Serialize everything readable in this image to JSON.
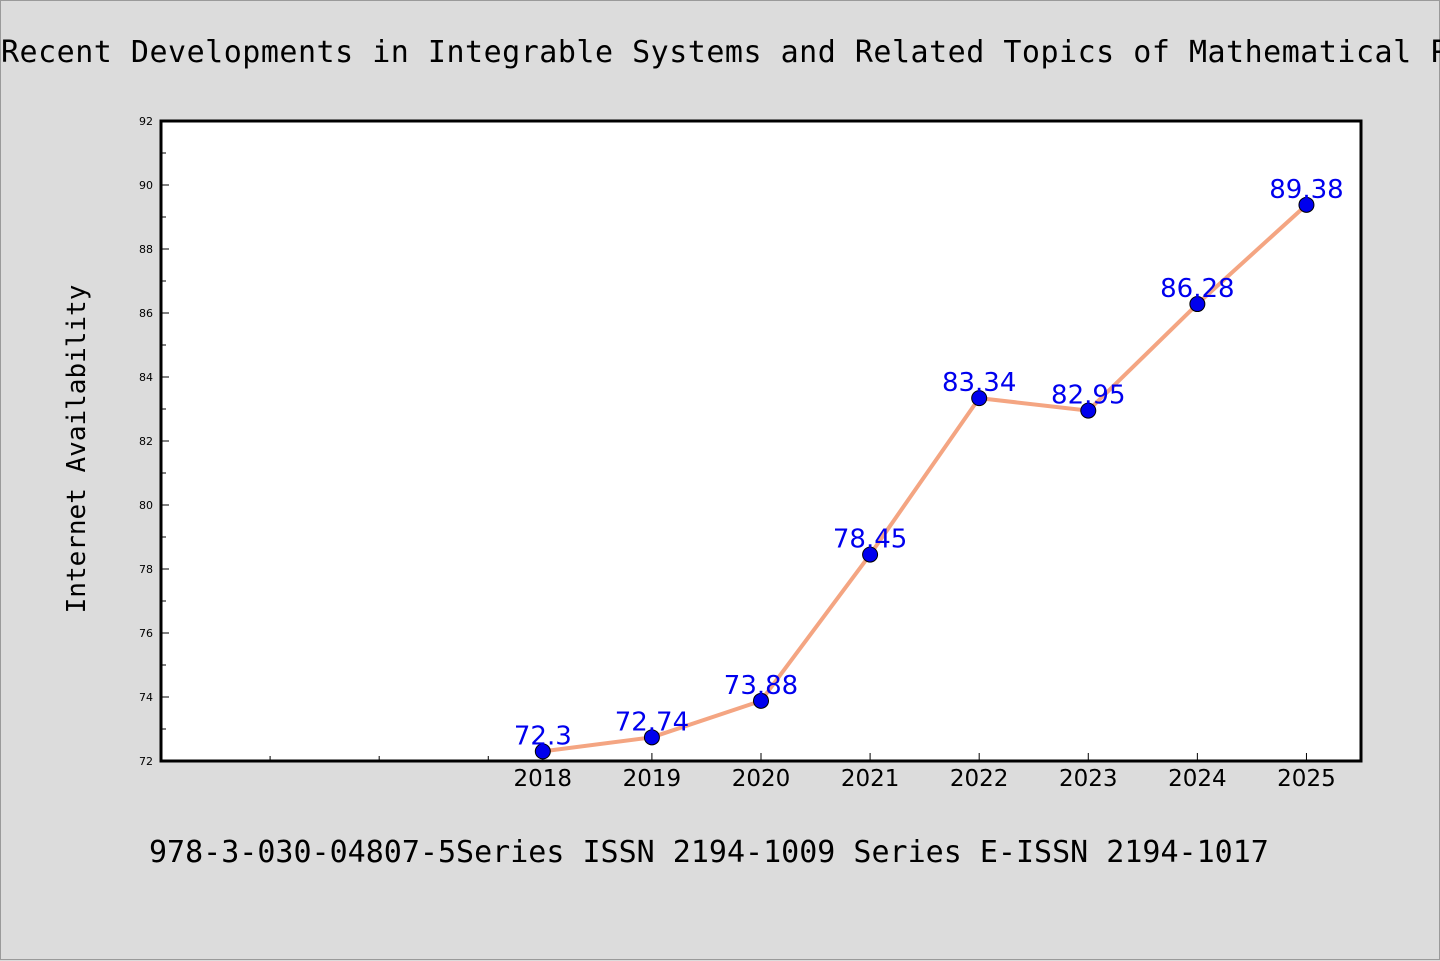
{
  "chart_data": {
    "type": "line",
    "title": "Recent Developments in Integrable Systems and Related Topics of Mathematical Phy",
    "ylabel": "Internet Availability",
    "xlabel": "",
    "x_tick_positions": [
      2015.5,
      2016.5,
      2017.5
    ],
    "categories": [
      "2018",
      "2019",
      "2020",
      "2021",
      "2022",
      "2023",
      "2024",
      "2025"
    ],
    "x": [
      2018,
      2019,
      2020,
      2021,
      2022,
      2023,
      2024,
      2025
    ],
    "values": [
      72.3,
      72.74,
      73.88,
      78.45,
      83.34,
      82.95,
      86.28,
      89.38
    ],
    "data_labels": [
      "72.3",
      "72.74",
      "73.88",
      "78.45",
      "83.34",
      "82.95",
      "86.28",
      "89.38"
    ],
    "xlim": [
      2014.5,
      2025.5
    ],
    "ylim": [
      72,
      92
    ],
    "y_ticks": [
      "72",
      "74",
      "76",
      "78",
      "80",
      "82",
      "84",
      "86",
      "88",
      "90",
      "92"
    ],
    "grid": false,
    "line_color": "#f4a582",
    "marker_color": "#0000ee",
    "label_color": "#0000ee"
  },
  "footer": "978-3-030-04807-5Series ISSN 2194-1009 Series E-ISSN 2194-1017"
}
